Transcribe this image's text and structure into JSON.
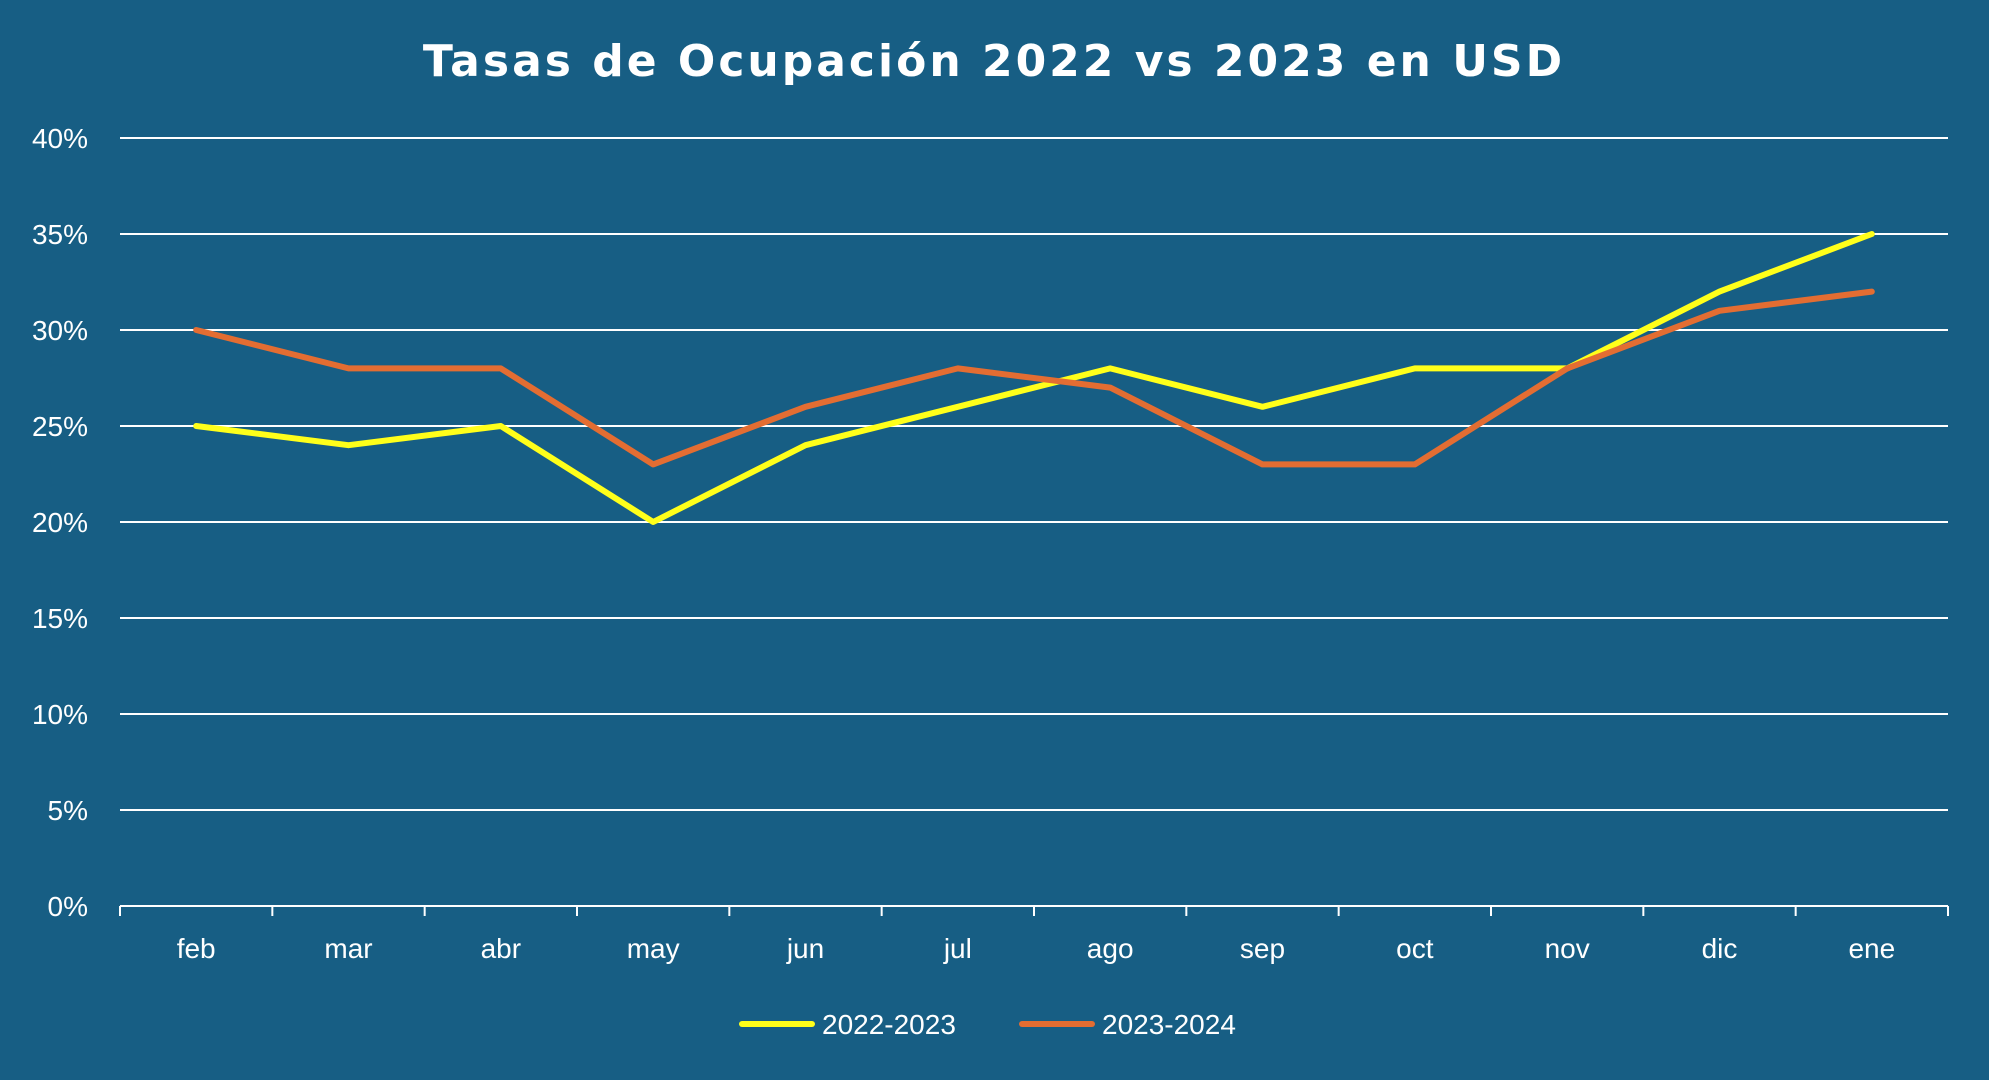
{
  "colors": {
    "background": "#175e84",
    "grid": "#ffffff",
    "text": "#ffffff"
  },
  "chart_data": {
    "type": "line",
    "title": "Tasas de Ocupación 2022 vs 2023 en USD",
    "xlabel": "",
    "ylabel": "",
    "categories": [
      "feb",
      "mar",
      "abr",
      "may",
      "jun",
      "jul",
      "ago",
      "sep",
      "oct",
      "nov",
      "dic",
      "ene"
    ],
    "ylim": [
      0,
      40
    ],
    "yticks": [
      "0%",
      "5%",
      "10%",
      "15%",
      "20%",
      "25%",
      "30%",
      "35%",
      "40%"
    ],
    "grid": true,
    "legend_position": "bottom",
    "series": [
      {
        "name": "2022-2023",
        "color": "#ffff1a",
        "values": [
          25,
          24,
          25,
          20,
          24,
          26,
          28,
          26,
          28,
          28,
          32,
          35
        ]
      },
      {
        "name": "2023-2024",
        "color": "#e36d32",
        "values": [
          30,
          28,
          28,
          23,
          26,
          28,
          27,
          23,
          23,
          28,
          31,
          32
        ]
      }
    ]
  }
}
